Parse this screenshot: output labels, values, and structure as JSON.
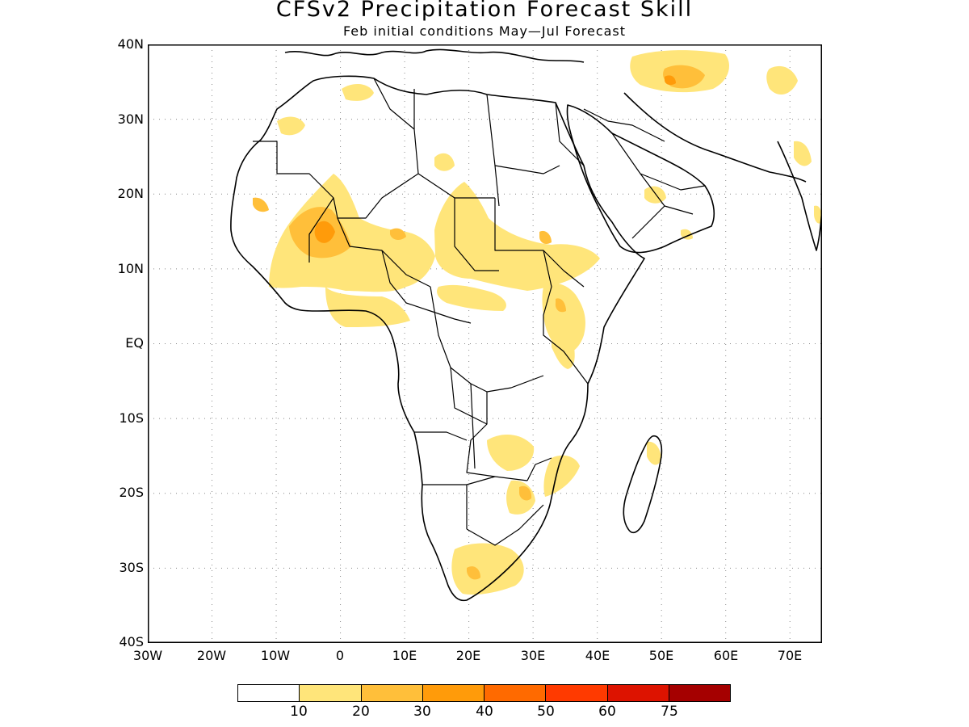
{
  "title": "CFSv2 Precipitation Forecast Skill",
  "subtitle": "Feb initial conditions  May—Jul Forecast",
  "axes": {
    "y_ticks": [
      "40N",
      "30N",
      "20N",
      "10N",
      "EQ",
      "10S",
      "20S",
      "30S",
      "40S"
    ],
    "x_ticks": [
      "30W",
      "20W",
      "10W",
      "0",
      "10E",
      "20E",
      "30E",
      "40E",
      "50E",
      "60E",
      "70E"
    ],
    "lon_range": [
      -30,
      75
    ],
    "lat_range": [
      -40,
      40
    ],
    "grid": "dotted"
  },
  "colorbar": {
    "colors": [
      "#ffffff",
      "#ffe57a",
      "#ffbf3a",
      "#ff9b0a",
      "#ff6a00",
      "#ff3a00",
      "#dd1300",
      "#a50000"
    ],
    "labels": [
      "10",
      "20",
      "30",
      "40",
      "50",
      "60",
      "75"
    ]
  },
  "colors": {
    "level_10": "#ffe57a",
    "level_20": "#ffbf3a",
    "level_30": "#ff9b0a",
    "coastline": "#000000"
  }
}
